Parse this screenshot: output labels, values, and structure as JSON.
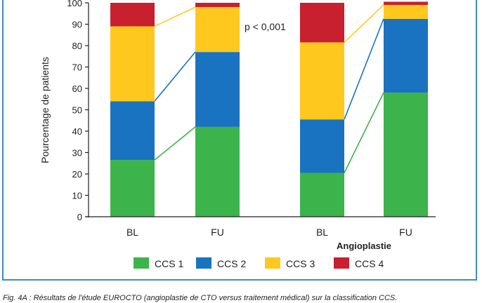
{
  "chart_data": {
    "type": "bar",
    "stacked": true,
    "ylabel": "Pourcentage de patients",
    "ylim": [
      0,
      100
    ],
    "yticks": [
      "0",
      "10",
      "20",
      "30",
      "40",
      "50",
      "60",
      "70",
      "80",
      "90",
      "100"
    ],
    "categories": [
      "BL",
      "FU",
      "BL",
      "FU"
    ],
    "group_labels": [
      {
        "label": "Angioplastie",
        "categories": [
          2,
          3
        ]
      }
    ],
    "annotation": "p < 0,001",
    "connectors": true,
    "grid": false,
    "legend_position": "bottom",
    "series": [
      {
        "name": "CCS 1",
        "color": "#3cb44b",
        "values": [
          26.5,
          42,
          20.5,
          58
        ]
      },
      {
        "name": "CCS 2",
        "color": "#1a73c0",
        "values": [
          27.5,
          35,
          25,
          34.5
        ]
      },
      {
        "name": "CCS 3",
        "color": "#ffc81e",
        "values": [
          35,
          21,
          36,
          6.5
        ]
      },
      {
        "name": "CCS 4",
        "color": "#c8202e",
        "values": [
          11,
          2,
          18.5,
          1.5
        ]
      }
    ]
  },
  "caption": "Fig. 4A : Résultats de l'étude EUROCTO (angioplastie de CTO versus traitement médical) sur la classification CCS."
}
